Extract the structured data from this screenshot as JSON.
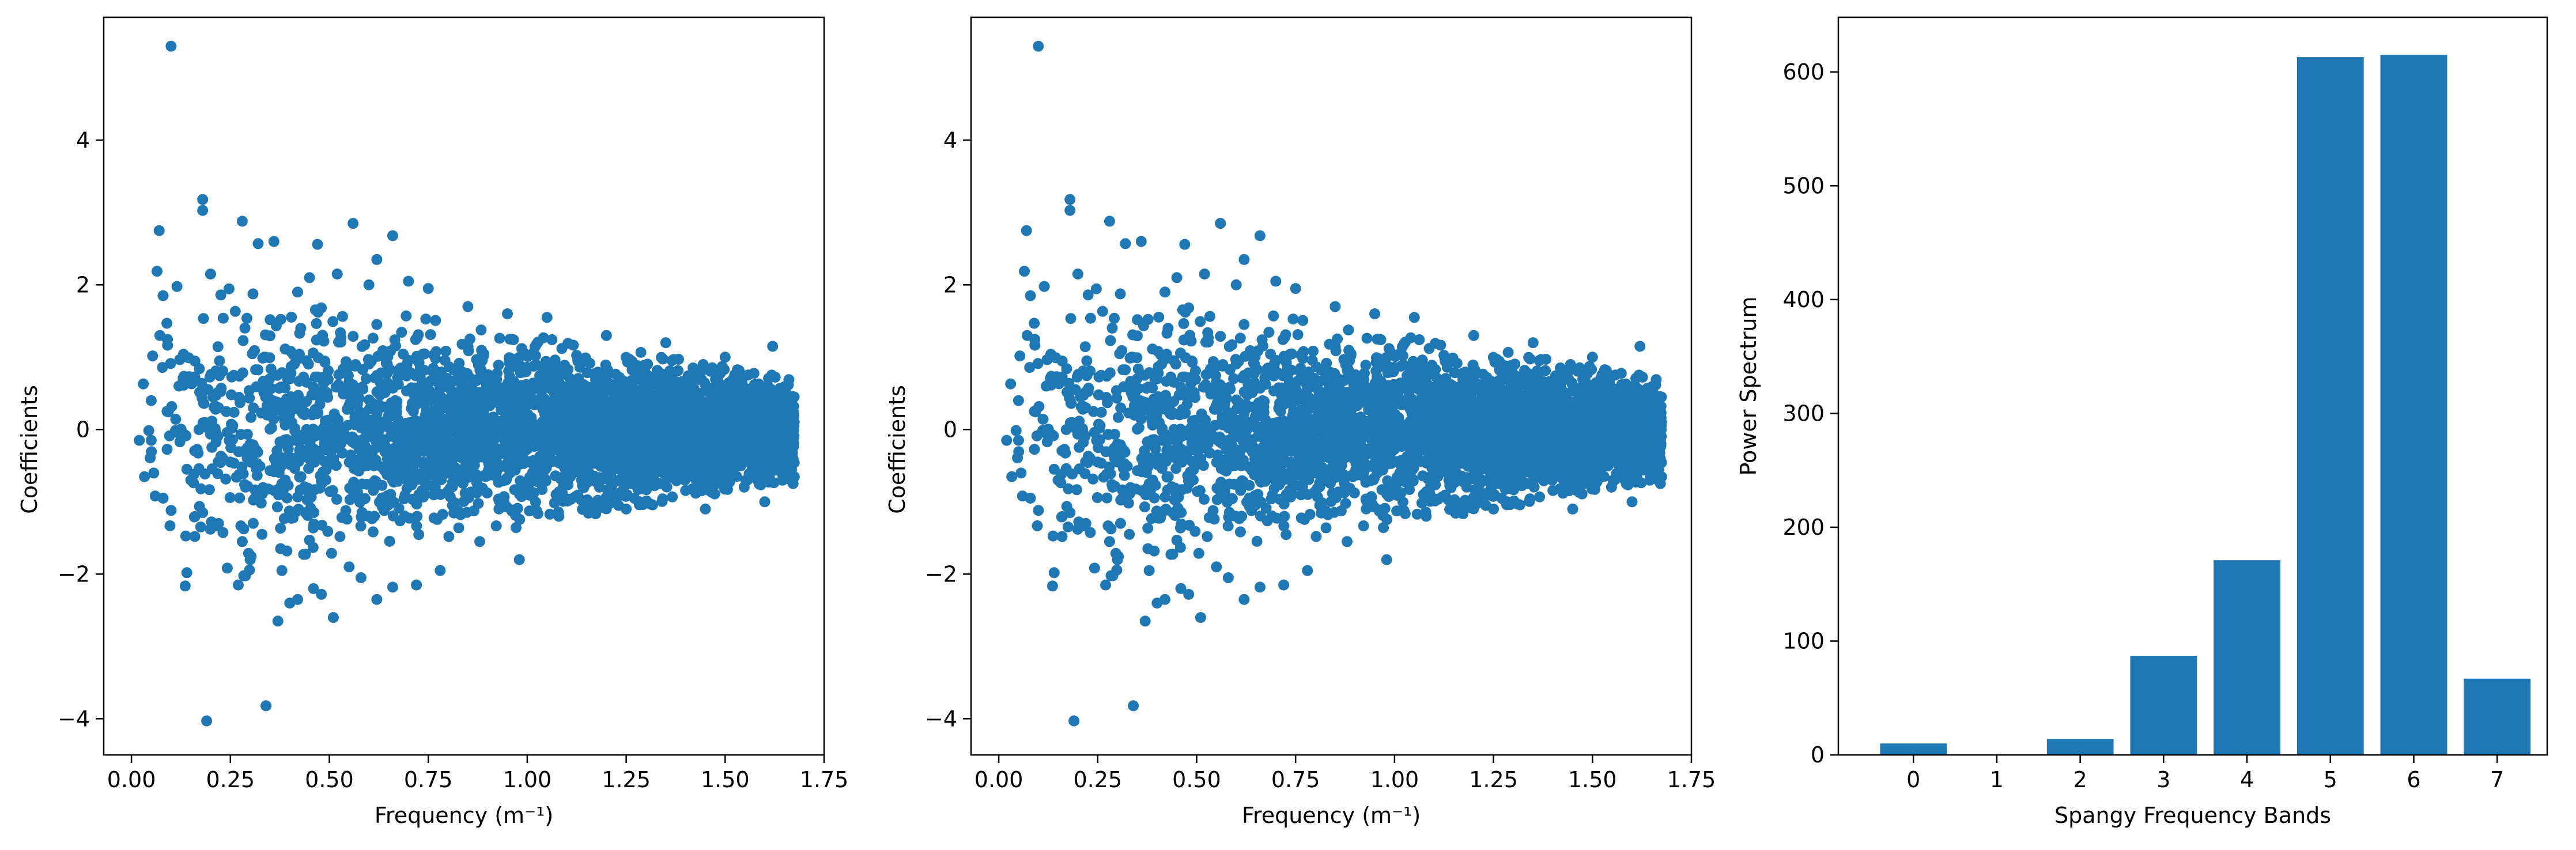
{
  "figure": {
    "background": "#ffffff",
    "axis_color": "#000000",
    "mark_color": "#1f77b4"
  },
  "chart_data": [
    {
      "type": "scatter",
      "title": "",
      "xlabel": "Frequency (m⁻¹)",
      "ylabel": "Coefficients",
      "xlim": [
        -0.07,
        1.75
      ],
      "ylim": [
        -4.5,
        5.7
      ],
      "xticks": [
        0.0,
        0.25,
        0.5,
        0.75,
        1.0,
        1.25,
        1.5,
        1.75
      ],
      "xtick_labels": [
        "0.00",
        "0.25",
        "0.50",
        "0.75",
        "1.00",
        "1.25",
        "1.50",
        "1.75"
      ],
      "yticks": [
        -4,
        -2,
        0,
        2,
        4
      ],
      "ytick_labels": [
        "−4",
        "−2",
        "0",
        "2",
        "4"
      ],
      "grid": false,
      "legend": "none",
      "color": "#1f77b4",
      "series": [
        {
          "points": [
            [
              0.1,
              5.3
            ],
            [
              0.18,
              3.18
            ],
            [
              0.18,
              3.03
            ],
            [
              0.07,
              2.75
            ],
            [
              0.28,
              2.88
            ],
            [
              0.32,
              2.57
            ],
            [
              0.36,
              2.6
            ],
            [
              0.56,
              2.85
            ],
            [
              0.66,
              2.68
            ],
            [
              0.08,
              1.85
            ],
            [
              0.2,
              2.15
            ],
            [
              0.47,
              2.56
            ],
            [
              0.45,
              2.1
            ],
            [
              0.52,
              2.15
            ],
            [
              0.6,
              2.0
            ],
            [
              0.62,
              2.35
            ],
            [
              0.42,
              1.9
            ],
            [
              0.7,
              2.05
            ],
            [
              0.75,
              1.95
            ],
            [
              0.85,
              1.7
            ],
            [
              0.95,
              1.6
            ],
            [
              1.05,
              1.55
            ],
            [
              1.2,
              1.3
            ],
            [
              1.35,
              1.2
            ],
            [
              1.5,
              1.0
            ],
            [
              1.62,
              1.15
            ],
            [
              0.03,
              0.63
            ],
            [
              0.05,
              0.4
            ],
            [
              0.05,
              -0.15
            ],
            [
              0.02,
              -0.15
            ],
            [
              0.09,
              0.25
            ],
            [
              0.12,
              0.6
            ],
            [
              0.14,
              -0.55
            ],
            [
              0.15,
              -0.7
            ],
            [
              0.22,
              0.3
            ],
            [
              0.25,
              -0.45
            ],
            [
              0.3,
              -0.2
            ],
            [
              0.35,
              0.4
            ],
            [
              0.38,
              -0.75
            ],
            [
              0.4,
              0.7
            ],
            [
              0.06,
              -0.92
            ],
            [
              0.08,
              -0.95
            ],
            [
              0.16,
              -1.48
            ],
            [
              0.14,
              -1.98
            ],
            [
              0.18,
              -1.15
            ],
            [
              0.22,
              -1.3
            ],
            [
              0.28,
              -1.55
            ],
            [
              0.3,
              -1.8
            ],
            [
              0.33,
              -1.45
            ],
            [
              0.38,
              -1.95
            ],
            [
              0.42,
              -2.35
            ],
            [
              0.46,
              -2.2
            ],
            [
              0.48,
              -2.28
            ],
            [
              0.51,
              -2.6
            ],
            [
              0.55,
              -1.9
            ],
            [
              0.58,
              -2.05
            ],
            [
              0.62,
              -2.35
            ],
            [
              0.66,
              -2.18
            ],
            [
              0.72,
              -2.15
            ],
            [
              0.78,
              -1.95
            ],
            [
              0.88,
              -1.55
            ],
            [
              0.98,
              -1.8
            ],
            [
              1.08,
              -1.2
            ],
            [
              1.25,
              -1.1
            ],
            [
              1.45,
              -1.1
            ],
            [
              1.6,
              -1.0
            ],
            [
              0.37,
              -2.65
            ],
            [
              0.4,
              -2.4
            ],
            [
              0.19,
              -4.03
            ],
            [
              0.34,
              -3.82
            ],
            [
              0.27,
              -2.15
            ]
          ]
        }
      ]
    },
    {
      "type": "scatter",
      "title": "",
      "xlabel": "Frequency (m⁻¹)",
      "ylabel": "Coefficients",
      "xlim": [
        -0.07,
        1.75
      ],
      "ylim": [
        -4.5,
        5.7
      ],
      "xticks": [
        0.0,
        0.25,
        0.5,
        0.75,
        1.0,
        1.25,
        1.5,
        1.75
      ],
      "xtick_labels": [
        "0.00",
        "0.25",
        "0.50",
        "0.75",
        "1.00",
        "1.25",
        "1.50",
        "1.75"
      ],
      "yticks": [
        -4,
        -2,
        0,
        2,
        4
      ],
      "ytick_labels": [
        "−4",
        "−2",
        "0",
        "2",
        "4"
      ],
      "grid": false,
      "legend": "none",
      "color": "#1f77b4",
      "series": [
        {
          "points": [
            [
              0.1,
              5.3
            ],
            [
              0.18,
              3.18
            ],
            [
              0.18,
              3.03
            ],
            [
              0.07,
              2.75
            ],
            [
              0.28,
              2.88
            ],
            [
              0.32,
              2.57
            ],
            [
              0.36,
              2.6
            ],
            [
              0.56,
              2.85
            ],
            [
              0.66,
              2.68
            ],
            [
              0.08,
              1.85
            ],
            [
              0.2,
              2.15
            ],
            [
              0.47,
              2.56
            ],
            [
              0.45,
              2.1
            ],
            [
              0.52,
              2.15
            ],
            [
              0.6,
              2.0
            ],
            [
              0.62,
              2.35
            ],
            [
              0.42,
              1.9
            ],
            [
              0.7,
              2.05
            ],
            [
              0.75,
              1.95
            ],
            [
              0.85,
              1.7
            ],
            [
              0.95,
              1.6
            ],
            [
              1.05,
              1.55
            ],
            [
              1.2,
              1.3
            ],
            [
              1.35,
              1.2
            ],
            [
              1.5,
              1.0
            ],
            [
              1.62,
              1.15
            ],
            [
              0.03,
              0.63
            ],
            [
              0.05,
              0.4
            ],
            [
              0.05,
              -0.15
            ],
            [
              0.02,
              -0.15
            ],
            [
              0.09,
              0.25
            ],
            [
              0.12,
              0.6
            ],
            [
              0.14,
              -0.55
            ],
            [
              0.15,
              -0.7
            ],
            [
              0.22,
              0.3
            ],
            [
              0.25,
              -0.45
            ],
            [
              0.3,
              -0.2
            ],
            [
              0.35,
              0.4
            ],
            [
              0.38,
              -0.75
            ],
            [
              0.4,
              0.7
            ],
            [
              0.06,
              -0.92
            ],
            [
              0.08,
              -0.95
            ],
            [
              0.16,
              -1.48
            ],
            [
              0.14,
              -1.98
            ],
            [
              0.18,
              -1.15
            ],
            [
              0.22,
              -1.3
            ],
            [
              0.28,
              -1.55
            ],
            [
              0.3,
              -1.8
            ],
            [
              0.33,
              -1.45
            ],
            [
              0.38,
              -1.95
            ],
            [
              0.42,
              -2.35
            ],
            [
              0.46,
              -2.2
            ],
            [
              0.48,
              -2.28
            ],
            [
              0.51,
              -2.6
            ],
            [
              0.55,
              -1.9
            ],
            [
              0.58,
              -2.05
            ],
            [
              0.62,
              -2.35
            ],
            [
              0.66,
              -2.18
            ],
            [
              0.72,
              -2.15
            ],
            [
              0.78,
              -1.95
            ],
            [
              0.88,
              -1.55
            ],
            [
              0.98,
              -1.8
            ],
            [
              1.08,
              -1.2
            ],
            [
              1.25,
              -1.1
            ],
            [
              1.45,
              -1.1
            ],
            [
              1.6,
              -1.0
            ],
            [
              0.37,
              -2.65
            ],
            [
              0.4,
              -2.4
            ],
            [
              0.19,
              -4.03
            ],
            [
              0.34,
              -3.82
            ],
            [
              0.27,
              -2.15
            ]
          ]
        }
      ]
    },
    {
      "type": "bar",
      "title": "",
      "xlabel": "Spangy Frequency Bands",
      "ylabel": "Power Spectrum",
      "categories": [
        "0",
        "1",
        "2",
        "3",
        "4",
        "5",
        "6",
        "7"
      ],
      "values": [
        10,
        0,
        14,
        87,
        171,
        613,
        615,
        67
      ],
      "xlim": [
        -0.9,
        7.6
      ],
      "ylim": [
        0,
        648
      ],
      "yticks": [
        0,
        100,
        200,
        300,
        400,
        500,
        600
      ],
      "ytick_labels": [
        "0",
        "100",
        "200",
        "300",
        "400",
        "500",
        "600"
      ],
      "grid": false,
      "legend": "none",
      "color": "#1f77b4"
    }
  ]
}
